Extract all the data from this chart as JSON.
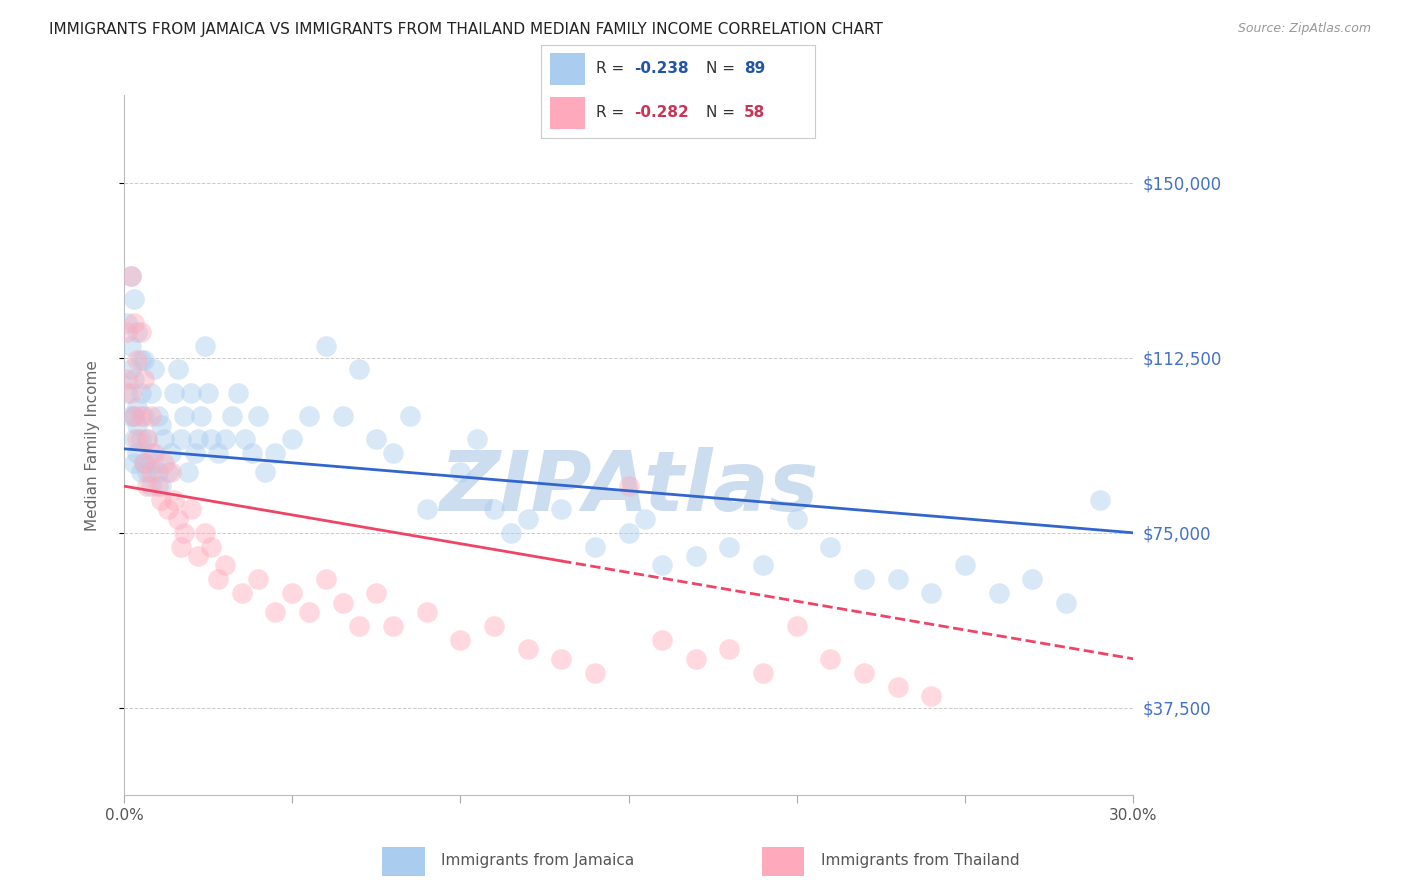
{
  "title": "IMMIGRANTS FROM JAMAICA VS IMMIGRANTS FROM THAILAND MEDIAN FAMILY INCOME CORRELATION CHART",
  "source": "Source: ZipAtlas.com",
  "ylabel": "Median Family Income",
  "xlim": [
    0,
    0.3
  ],
  "ylim": [
    18750,
    168750
  ],
  "yticks": [
    37500,
    75000,
    112500,
    150000
  ],
  "ytick_labels": [
    "$37,500",
    "$75,000",
    "$112,500",
    "$150,000"
  ],
  "xticks": [
    0.0,
    0.05,
    0.1,
    0.15,
    0.2,
    0.25,
    0.3
  ],
  "xtick_labels": [
    "0.0%",
    "",
    "",
    "",
    "",
    "",
    "30.0%"
  ],
  "series_jamaica": {
    "label": "Immigrants from Jamaica",
    "color_face": "#aaccee",
    "color_edge": "#88aacc",
    "R": -0.238,
    "N": 89,
    "R_str": "-0.238",
    "N_str": "89",
    "x": [
      0.001,
      0.001,
      0.002,
      0.002,
      0.002,
      0.003,
      0.003,
      0.003,
      0.003,
      0.004,
      0.004,
      0.004,
      0.005,
      0.005,
      0.005,
      0.006,
      0.006,
      0.006,
      0.007,
      0.007,
      0.008,
      0.008,
      0.008,
      0.009,
      0.009,
      0.01,
      0.01,
      0.011,
      0.011,
      0.012,
      0.013,
      0.014,
      0.015,
      0.016,
      0.017,
      0.018,
      0.019,
      0.02,
      0.021,
      0.022,
      0.023,
      0.024,
      0.025,
      0.026,
      0.028,
      0.03,
      0.032,
      0.034,
      0.036,
      0.038,
      0.04,
      0.042,
      0.045,
      0.05,
      0.055,
      0.06,
      0.065,
      0.07,
      0.075,
      0.08,
      0.085,
      0.09,
      0.1,
      0.105,
      0.11,
      0.115,
      0.12,
      0.13,
      0.14,
      0.15,
      0.155,
      0.16,
      0.17,
      0.18,
      0.19,
      0.2,
      0.21,
      0.22,
      0.23,
      0.24,
      0.25,
      0.26,
      0.27,
      0.28,
      0.29,
      0.002,
      0.003,
      0.004,
      0.005
    ],
    "y": [
      120000,
      105000,
      115000,
      100000,
      110000,
      108000,
      95000,
      100000,
      90000,
      102000,
      98000,
      92000,
      105000,
      95000,
      88000,
      112000,
      100000,
      90000,
      95000,
      88000,
      105000,
      92000,
      85000,
      110000,
      90000,
      100000,
      88000,
      98000,
      85000,
      95000,
      88000,
      92000,
      105000,
      110000,
      95000,
      100000,
      88000,
      105000,
      92000,
      95000,
      100000,
      115000,
      105000,
      95000,
      92000,
      95000,
      100000,
      105000,
      95000,
      92000,
      100000,
      88000,
      92000,
      95000,
      100000,
      115000,
      100000,
      110000,
      95000,
      92000,
      100000,
      80000,
      88000,
      95000,
      80000,
      75000,
      78000,
      80000,
      72000,
      75000,
      78000,
      68000,
      70000,
      72000,
      68000,
      78000,
      72000,
      65000,
      65000,
      62000,
      68000,
      62000,
      65000,
      60000,
      82000,
      130000,
      125000,
      118000,
      112000
    ]
  },
  "series_thailand": {
    "label": "Immigrants from Thailand",
    "color_face": "#ffaabc",
    "color_edge": "#ee8898",
    "R": -0.282,
    "N": 58,
    "R_str": "-0.282",
    "N_str": "58",
    "x": [
      0.001,
      0.001,
      0.002,
      0.002,
      0.003,
      0.003,
      0.004,
      0.004,
      0.005,
      0.005,
      0.006,
      0.006,
      0.007,
      0.007,
      0.008,
      0.008,
      0.009,
      0.01,
      0.011,
      0.012,
      0.013,
      0.014,
      0.015,
      0.016,
      0.017,
      0.018,
      0.02,
      0.022,
      0.024,
      0.026,
      0.028,
      0.03,
      0.035,
      0.04,
      0.045,
      0.05,
      0.055,
      0.06,
      0.065,
      0.07,
      0.075,
      0.08,
      0.09,
      0.1,
      0.11,
      0.12,
      0.13,
      0.14,
      0.15,
      0.16,
      0.17,
      0.18,
      0.19,
      0.2,
      0.21,
      0.22,
      0.23,
      0.24
    ],
    "y": [
      118000,
      108000,
      130000,
      105000,
      120000,
      100000,
      112000,
      95000,
      118000,
      100000,
      108000,
      90000,
      95000,
      85000,
      100000,
      88000,
      92000,
      85000,
      82000,
      90000,
      80000,
      88000,
      82000,
      78000,
      72000,
      75000,
      80000,
      70000,
      75000,
      72000,
      65000,
      68000,
      62000,
      65000,
      58000,
      62000,
      58000,
      65000,
      60000,
      55000,
      62000,
      55000,
      58000,
      52000,
      55000,
      50000,
      48000,
      45000,
      85000,
      52000,
      48000,
      50000,
      45000,
      55000,
      48000,
      45000,
      42000,
      40000
    ]
  },
  "trend_jamaica_y0": 93000,
  "trend_jamaica_y1": 75000,
  "trend_thailand_y0": 85000,
  "trend_thailand_y1": 48000,
  "trend_thailand_solid_end": 0.13,
  "trend_jamaica_color": "#3366cc",
  "trend_thailand_color": "#ee4466",
  "trend_linewidth": 2.0,
  "watermark": "ZIPAtlas",
  "watermark_color": "#ccddf0",
  "background_color": "#ffffff",
  "grid_color": "#cccccc",
  "title_fontsize": 11,
  "tick_color_right": "#4472c4",
  "legend_text_color": "#333333",
  "legend_val_color_jamaica": "#2255aa",
  "legend_val_color_thailand": "#cc3355",
  "source_color": "#999999"
}
